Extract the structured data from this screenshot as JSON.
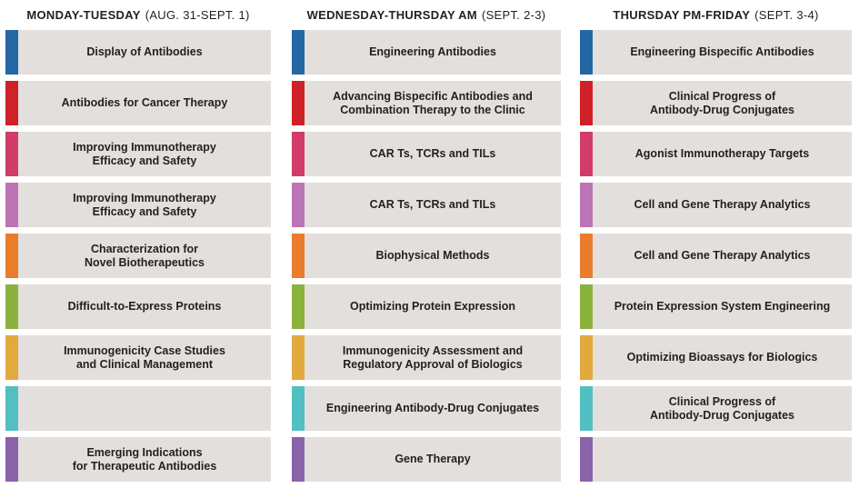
{
  "page": {
    "background": "#ffffff",
    "card_background": "#e2dfdd",
    "text_color": "#231f20"
  },
  "columns": [
    {
      "title": "MONDAY-TUESDAY",
      "dates": "(AUG. 31-SEPT. 1)",
      "sessions": [
        {
          "label": "Display of Antibodies",
          "color": "#2368a5"
        },
        {
          "label": "Antibodies for Cancer Therapy",
          "color": "#cf2127"
        },
        {
          "label": "Improving Immunotherapy\nEfficacy and Safety",
          "color": "#d23c68"
        },
        {
          "label": "Improving Immunotherapy\nEfficacy and Safety",
          "color": "#bb74b4"
        },
        {
          "label": "Characterization for\nNovel Biotherapeutics",
          "color": "#e97d2b"
        },
        {
          "label": "Difficult-to-Express Proteins",
          "color": "#8cb23e"
        },
        {
          "label": "Immunogenicity Case Studies\nand Clinical Management",
          "color": "#e2a93d"
        },
        {
          "label": "",
          "color": "#52bfc2"
        },
        {
          "label": "Emerging Indications\nfor Therapeutic Antibodies",
          "color": "#8a63a9"
        }
      ]
    },
    {
      "title": "WEDNESDAY-THURSDAY AM",
      "dates": "(SEPT. 2-3)",
      "sessions": [
        {
          "label": "Engineering Antibodies",
          "color": "#2368a5"
        },
        {
          "label": "Advancing Bispecific Antibodies and\nCombination Therapy to the Clinic",
          "color": "#cf2127"
        },
        {
          "label": "CAR Ts, TCRs and TILs",
          "color": "#d23c68"
        },
        {
          "label": "CAR Ts, TCRs and TILs",
          "color": "#bb74b4"
        },
        {
          "label": "Biophysical Methods",
          "color": "#e97d2b"
        },
        {
          "label": "Optimizing Protein Expression",
          "color": "#8cb23e"
        },
        {
          "label": "Immunogenicity Assessment and\nRegulatory Approval of Biologics",
          "color": "#e2a93d"
        },
        {
          "label": "Engineering Antibody-Drug Conjugates",
          "color": "#52bfc2"
        },
        {
          "label": "Gene Therapy",
          "color": "#8a63a9"
        }
      ]
    },
    {
      "title": "THURSDAY PM-FRIDAY",
      "dates": "(SEPT. 3-4)",
      "sessions": [
        {
          "label": "Engineering Bispecific Antibodies",
          "color": "#2368a5"
        },
        {
          "label": "Clinical Progress of\nAntibody-Drug Conjugates",
          "color": "#cf2127"
        },
        {
          "label": "Agonist Immunotherapy Targets",
          "color": "#d23c68"
        },
        {
          "label": "Cell and Gene Therapy Analytics",
          "color": "#bb74b4"
        },
        {
          "label": "Cell and Gene Therapy Analytics",
          "color": "#e97d2b"
        },
        {
          "label": "Protein Expression System Engineering",
          "color": "#8cb23e"
        },
        {
          "label": "Optimizing Bioassays for Biologics",
          "color": "#e2a93d"
        },
        {
          "label": "Clinical Progress of\nAntibody-Drug Conjugates",
          "color": "#52bfc2"
        },
        {
          "label": "",
          "color": "#8a63a9"
        }
      ]
    }
  ]
}
